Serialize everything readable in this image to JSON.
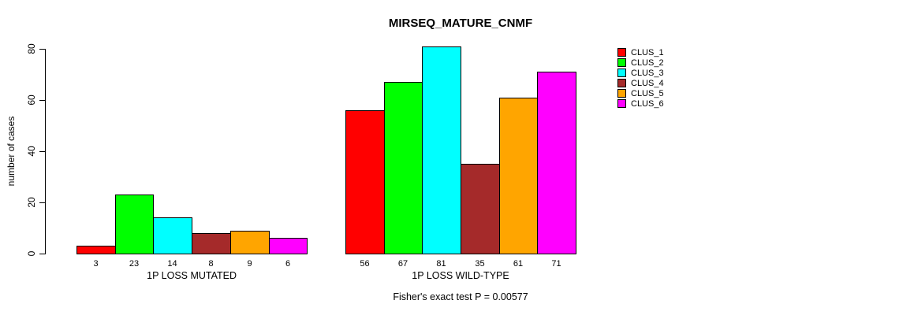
{
  "chart_data": {
    "type": "bar",
    "title": "MIRSEQ_MATURE_CNMF",
    "ylabel": "number of cases",
    "ylim": [
      0,
      80
    ],
    "yticks": [
      "0",
      "20",
      "40",
      "60",
      "80"
    ],
    "grid": false,
    "legend_position": "right-outside-top",
    "series_names": [
      "CLUS_1",
      "CLUS_2",
      "CLUS_3",
      "CLUS_4",
      "CLUS_5",
      "CLUS_6"
    ],
    "series_colors": [
      "#FF0000",
      "#00FF00",
      "#00FFFF",
      "#A52A2A",
      "#FFA500",
      "#FF00FF"
    ],
    "bar_border_color": "#000000",
    "groups": [
      {
        "label": "1P LOSS MUTATED",
        "values": [
          3,
          23,
          14,
          8,
          9,
          6
        ]
      },
      {
        "label": "1P LOSS WILD-TYPE",
        "values": [
          56,
          67,
          81,
          35,
          61,
          71
        ]
      }
    ],
    "value_labels_shown": true,
    "annotation": "Fisher's exact test P = 0.00577"
  }
}
